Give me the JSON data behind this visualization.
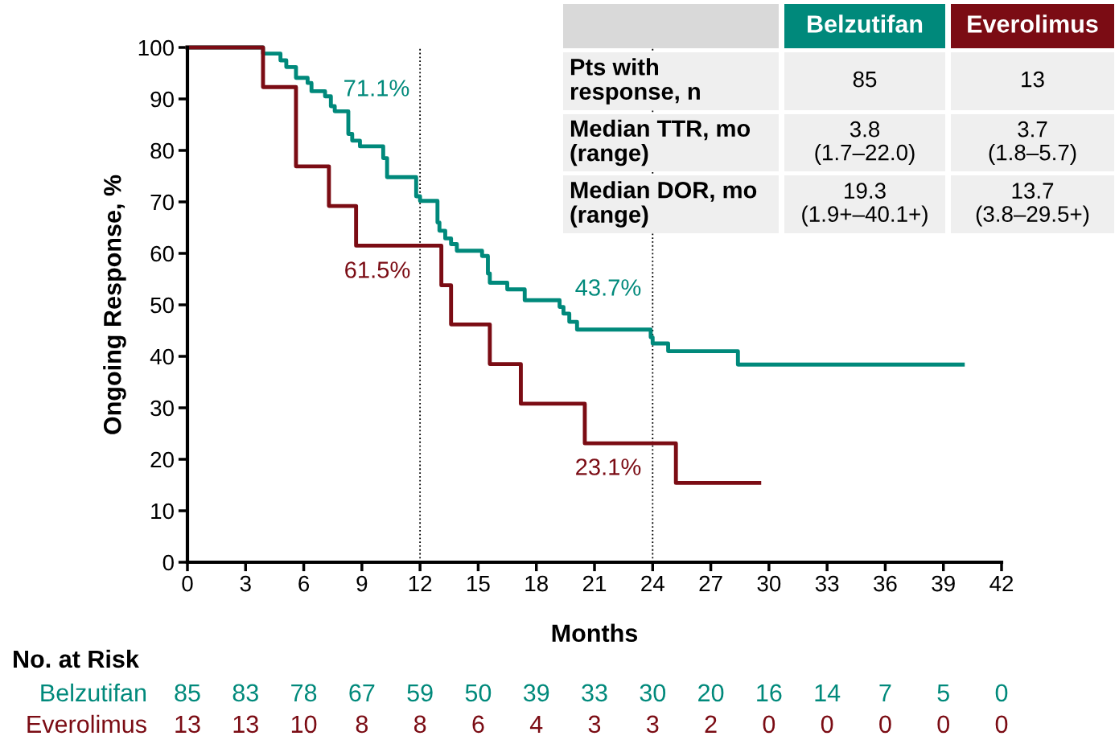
{
  "chart_data": {
    "type": "step",
    "xlabel": "Months",
    "ylabel": "Ongoing Response, %",
    "xlim": [
      0,
      42
    ],
    "xticks": [
      0,
      3,
      6,
      9,
      12,
      15,
      18,
      21,
      24,
      27,
      30,
      33,
      36,
      39,
      42
    ],
    "ylim": [
      0,
      100
    ],
    "yticks": [
      0,
      10,
      20,
      30,
      40,
      50,
      60,
      70,
      80,
      90,
      100
    ],
    "grid": false,
    "legend": false,
    "line_style": "solid",
    "marker": "none",
    "series": [
      {
        "name": "Belzutifan",
        "color": "#00897b",
        "x": [
          0,
          3.9,
          4.8,
          5.1,
          5.6,
          6.2,
          6.4,
          7.1,
          7.4,
          7.6,
          8.3,
          8.5,
          8.9,
          10.1,
          10.3,
          11.8,
          12.0,
          12.9,
          13.0,
          13.3,
          13.6,
          13.9,
          15.2,
          15.5,
          15.6,
          16.5,
          17.4,
          19.2,
          19.4,
          19.7,
          20.1,
          23.9,
          24.0,
          24.8,
          28.4,
          40.0
        ],
        "values": [
          100,
          98.8,
          97.5,
          96.2,
          94.1,
          93.1,
          91.5,
          90.5,
          88.6,
          87.6,
          83.2,
          81.9,
          80.8,
          78.5,
          74.8,
          71.1,
          70.2,
          66.0,
          64.4,
          62.9,
          61.8,
          60.5,
          59.5,
          56.1,
          54.3,
          53.0,
          50.9,
          49.6,
          48.3,
          46.7,
          45.2,
          43.7,
          42.5,
          41.0,
          38.4,
          38.4
        ]
      },
      {
        "name": "Everolimus",
        "color": "#7b0c14",
        "x": [
          0,
          3.9,
          5.6,
          7.3,
          8.7,
          13.1,
          13.6,
          15.6,
          17.2,
          20.5,
          25.2,
          29.5
        ],
        "values": [
          100,
          92.3,
          76.9,
          69.2,
          61.5,
          53.8,
          46.2,
          38.5,
          30.8,
          23.1,
          15.4,
          15.4
        ]
      }
    ],
    "ref_lines": [
      {
        "axis": "x",
        "value": 12,
        "line_style": "dotted",
        "color": "#000000"
      },
      {
        "axis": "x",
        "value": 24,
        "line_style": "dotted",
        "color": "#000000"
      }
    ],
    "annotations": [
      "71.1%",
      "61.5%",
      "43.7%",
      "23.1%",
      "Pts with\nresponse, n",
      "85",
      "13",
      "Median TTR, mo\n(range)",
      "3.8\n(1.7–22.0)",
      "3.7\n(1.8–5.7)",
      "Median DOR, mo\n(range)",
      "19.3\n(1.9+–40.1+)",
      "13.7\n(3.8–29.5+)",
      "No. at Risk",
      "85",
      "83",
      "78",
      "67",
      "59",
      "50",
      "39",
      "33",
      "30",
      "20",
      "16",
      "14",
      "7",
      "5",
      "0",
      "13",
      "13",
      "10",
      "8",
      "8",
      "6",
      "4",
      "3",
      "3",
      "2",
      "0",
      "0",
      "0",
      "0",
      "0"
    ]
  }
}
